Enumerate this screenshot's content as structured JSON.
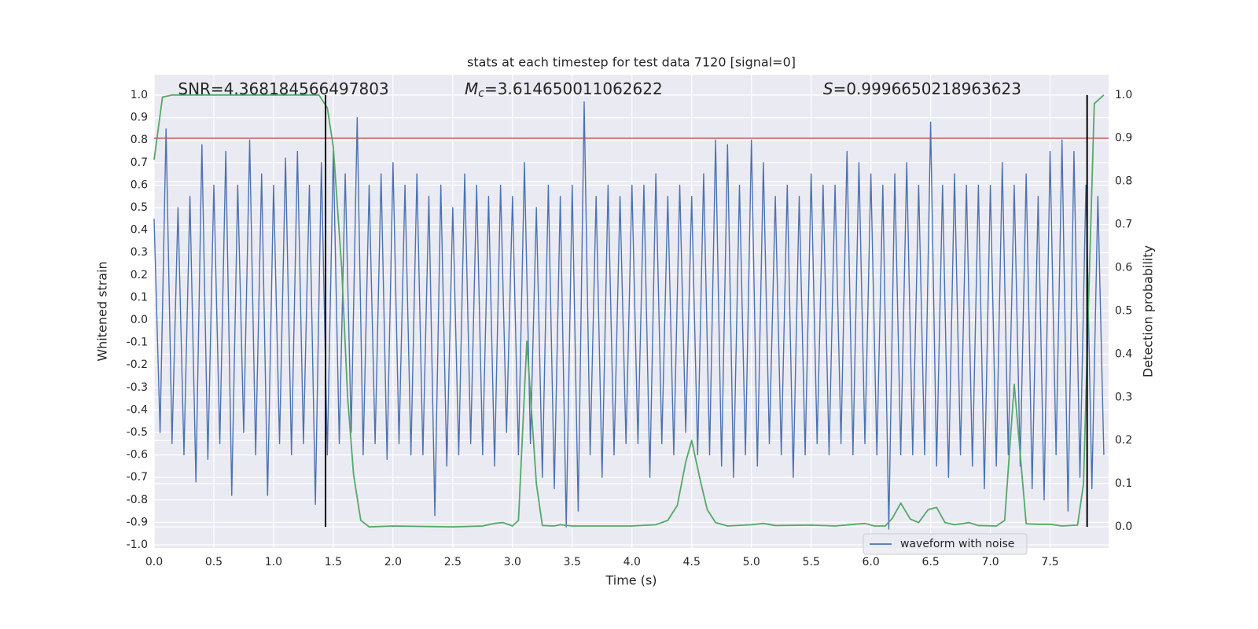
{
  "chart_data": {
    "type": "line",
    "title": "stats at each timestep for test data 7120 [signal=0]",
    "xlabel": "Time (s)",
    "ylabel": "Whitened strain",
    "y2label": "Detection probability",
    "annotations": [
      {
        "text": "SNR=4.368184566497803",
        "x": 0.2
      },
      {
        "symbol": "M",
        "subscript": "c",
        "text": "=3.614650011062622",
        "x": 2.6
      },
      {
        "symbol": "S",
        "text": "=0.9996650218963623",
        "x": 5.6
      }
    ],
    "xlim": [
      0,
      7.99
    ],
    "ylim": [
      -1.014,
      1.091
    ],
    "y2lim": [
      -0.049,
      1.047
    ],
    "xticks": [
      {
        "value": 0,
        "label": "0.0"
      },
      0.5,
      {
        "value": 1,
        "label": "1.0"
      },
      1.5,
      {
        "value": 2,
        "label": "2.0"
      },
      2.5,
      {
        "value": 3,
        "label": "3.0"
      },
      3.5,
      {
        "value": 4,
        "label": "4.0"
      },
      4.5,
      {
        "value": 5,
        "label": "5.0"
      },
      5.5,
      {
        "value": 6,
        "label": "6.0"
      },
      6.5,
      {
        "value": 7,
        "label": "7.0"
      },
      7.5
    ],
    "yticks": [
      {
        "value": -1,
        "label": "-1.0"
      },
      -0.9,
      -0.8,
      -0.7,
      -0.6,
      -0.5,
      -0.4,
      -0.3,
      -0.2,
      -0.1,
      {
        "value": 0,
        "label": "0.0"
      },
      0.1,
      0.2,
      0.3,
      0.4,
      0.5,
      0.6,
      0.7,
      0.8,
      0.9,
      {
        "value": 1,
        "label": "1.0"
      }
    ],
    "y2ticks": [
      {
        "value": 0,
        "label": "0.0"
      },
      0.1,
      0.2,
      0.3,
      0.4,
      0.5,
      0.6,
      0.7,
      0.8,
      0.9,
      {
        "value": 1,
        "label": "1.0"
      }
    ],
    "grid": true,
    "legend": "lower right",
    "series": [
      {
        "name": "waveform with noise",
        "color": "#4c72b0",
        "axis": "y",
        "x": [
          0,
          0.05,
          0.1,
          0.15,
          0.2,
          0.25,
          0.3,
          0.35,
          0.4,
          0.45,
          0.5,
          0.55,
          0.6,
          0.65,
          0.7,
          0.75,
          0.8,
          0.85,
          0.9,
          0.95,
          1,
          1.05,
          1.1,
          1.15,
          1.2,
          1.25,
          1.3,
          1.35,
          1.4,
          1.45,
          1.5,
          1.55,
          1.6,
          1.65,
          1.7,
          1.75,
          1.8,
          1.85,
          1.9,
          1.95,
          2,
          2.05,
          2.1,
          2.15,
          2.2,
          2.25,
          2.3,
          2.35,
          2.4,
          2.45,
          2.5,
          2.55,
          2.6,
          2.65,
          2.7,
          2.75,
          2.8,
          2.85,
          2.9,
          2.95,
          3,
          3.05,
          3.1,
          3.15,
          3.2,
          3.25,
          3.3,
          3.35,
          3.4,
          3.45,
          3.5,
          3.55,
          3.6,
          3.65,
          3.7,
          3.75,
          3.8,
          3.85,
          3.9,
          3.95,
          4,
          4.05,
          4.1,
          4.15,
          4.2,
          4.25,
          4.3,
          4.35,
          4.4,
          4.45,
          4.5,
          4.55,
          4.6,
          4.65,
          4.7,
          4.75,
          4.8,
          4.85,
          4.9,
          4.95,
          5,
          5.05,
          5.1,
          5.15,
          5.2,
          5.25,
          5.3,
          5.35,
          5.4,
          5.45,
          5.5,
          5.55,
          5.6,
          5.65,
          5.7,
          5.75,
          5.8,
          5.85,
          5.9,
          5.95,
          6,
          6.05,
          6.1,
          6.15,
          6.2,
          6.25,
          6.3,
          6.35,
          6.4,
          6.45,
          6.5,
          6.55,
          6.6,
          6.65,
          6.7,
          6.75,
          6.8,
          6.85,
          6.9,
          6.95,
          7,
          7.05,
          7.1,
          7.15,
          7.2,
          7.25,
          7.3,
          7.35,
          7.4,
          7.45,
          7.5,
          7.55,
          7.6,
          7.65,
          7.7,
          7.75,
          7.8,
          7.85,
          7.9,
          7.95
        ],
        "values": [
          0.45,
          -0.5,
          0.85,
          -0.55,
          0.5,
          -0.6,
          0.55,
          -0.72,
          0.78,
          -0.62,
          0.6,
          -0.55,
          0.75,
          -0.78,
          0.6,
          -0.5,
          0.8,
          -0.6,
          0.65,
          -0.78,
          0.6,
          -0.55,
          0.72,
          -0.6,
          0.75,
          -0.55,
          0.6,
          -0.82,
          0.7,
          -0.6,
          0.75,
          -0.55,
          0.65,
          -0.5,
          0.9,
          -0.6,
          0.6,
          -0.55,
          0.65,
          -0.62,
          0.7,
          -0.55,
          0.6,
          -0.6,
          0.65,
          -0.6,
          0.55,
          -0.87,
          0.6,
          -0.65,
          0.5,
          -0.6,
          0.65,
          -0.55,
          0.6,
          -0.6,
          0.55,
          -0.65,
          0.6,
          -0.5,
          0.55,
          -0.6,
          0.7,
          -0.55,
          0.5,
          -0.7,
          0.6,
          -0.75,
          0.55,
          -0.92,
          0.6,
          -0.85,
          0.97,
          -0.6,
          0.55,
          -0.7,
          0.6,
          -0.6,
          0.55,
          -0.55,
          0.6,
          -0.55,
          0.6,
          -0.7,
          0.65,
          -0.55,
          0.55,
          -0.6,
          0.6,
          -0.5,
          0.55,
          -0.6,
          0.65,
          -0.6,
          0.8,
          -0.65,
          0.78,
          -0.7,
          0.6,
          -0.6,
          0.8,
          -0.65,
          0.7,
          -0.55,
          0.55,
          -0.6,
          0.6,
          -0.7,
          0.55,
          -0.6,
          0.65,
          -0.55,
          0.6,
          -0.6,
          0.6,
          -0.55,
          0.75,
          -0.6,
          0.7,
          -0.55,
          0.65,
          -0.6,
          0.6,
          -0.93,
          0.65,
          -0.6,
          0.7,
          -0.6,
          0.6,
          -0.6,
          0.88,
          -0.65,
          0.6,
          -0.7,
          0.65,
          -0.6,
          0.6,
          -0.65,
          0.6,
          -0.75,
          0.6,
          -0.65,
          0.7,
          -0.6,
          0.6,
          -0.65,
          0.65,
          -0.75,
          0.55,
          -0.8,
          0.75,
          -0.6,
          0.8,
          -0.85,
          0.75,
          -0.7,
          0.6,
          -0.75,
          0.55,
          -0.6
        ]
      },
      {
        "color": "#55a868",
        "axis": "y2",
        "x": [
          0,
          0.07,
          0.15,
          1.38,
          1.45,
          1.5,
          1.57,
          1.62,
          1.67,
          1.73,
          1.8,
          2,
          2.5,
          2.75,
          2.85,
          2.92,
          3,
          3.05,
          3.12,
          3.2,
          3.25,
          3.35,
          3.4,
          3.5,
          4,
          4.2,
          4.3,
          4.38,
          4.45,
          4.5,
          4.57,
          4.63,
          4.7,
          4.8,
          5,
          5.1,
          5.2,
          5.5,
          5.7,
          5.95,
          6.03,
          6.12,
          6.18,
          6.25,
          6.33,
          6.4,
          6.48,
          6.55,
          6.62,
          6.7,
          6.78,
          6.82,
          6.9,
          7.05,
          7.12,
          7.2,
          7.3,
          7.4,
          7.5,
          7.6,
          7.73,
          7.78,
          7.82,
          7.87,
          7.95
        ],
        "values": [
          0.85,
          0.995,
          1,
          1,
          0.97,
          0.88,
          0.6,
          0.3,
          0.12,
          0.015,
          0,
          0.002,
          0,
          0.002,
          0.008,
          0.01,
          0.002,
          0.015,
          0.43,
          0.1,
          0.003,
          0.002,
          0.005,
          0.002,
          0.002,
          0.005,
          0.015,
          0.05,
          0.15,
          0.2,
          0.11,
          0.04,
          0.01,
          0.002,
          0.005,
          0.008,
          0.003,
          0.004,
          0.002,
          0.008,
          0.002,
          0.002,
          0.02,
          0.055,
          0.018,
          0.01,
          0.04,
          0.045,
          0.01,
          0.005,
          0.008,
          0.01,
          0.003,
          0.002,
          0.015,
          0.33,
          0.007,
          0.006,
          0.006,
          0.002,
          0.004,
          0.1,
          0.5,
          0.98,
          1
        ]
      }
    ],
    "hlines": [
      {
        "value": 0.9,
        "axis": "y2",
        "color": "#c44e52"
      }
    ],
    "vlines": [
      {
        "x": 1.435,
        "ymin": 0,
        "ymax": 1,
        "axis": "y2",
        "color": "#000000"
      },
      {
        "x": 7.81,
        "ymin": 0,
        "ymax": 1,
        "axis": "y2",
        "color": "#000000"
      }
    ]
  }
}
